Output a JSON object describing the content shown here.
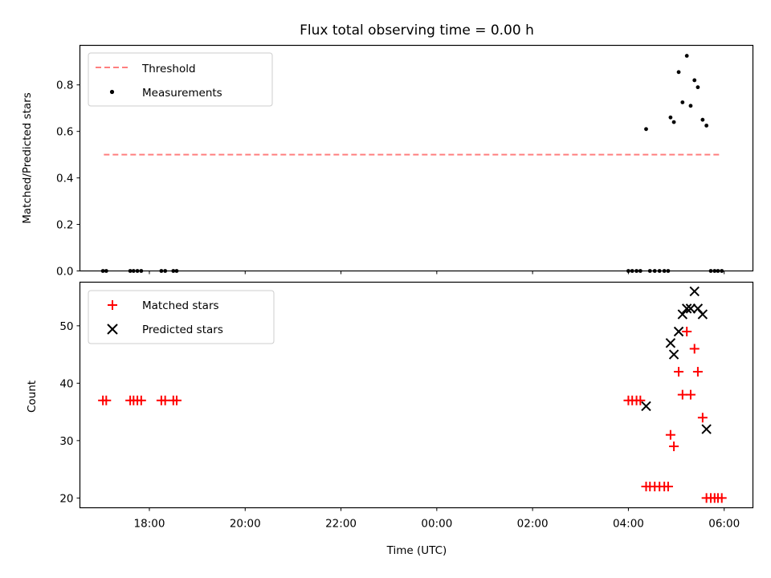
{
  "chart_data": [
    {
      "type": "scatter",
      "title": "Flux total observing time = 0.00 h",
      "xlabel": "",
      "ylabel": "Matched/Predicted stars",
      "ylim": [
        0,
        0.97
      ],
      "yticks": [
        0.0,
        0.2,
        0.4,
        0.6,
        0.8
      ],
      "ytick_labels": [
        "0.0",
        "0.2",
        "0.4",
        "0.6",
        "0.8"
      ],
      "x_unit": "hours since 00:00 UTC",
      "xlim": [
        -7.45,
        6.6
      ],
      "legend_position": "upper-left",
      "threshold": {
        "name": "Threshold",
        "color": "#ff7f7f",
        "style": "dashed",
        "y": 0.5,
        "x_range": [
          -6.95,
          5.93
        ]
      },
      "series": [
        {
          "name": "Measurements",
          "marker": "dot",
          "color": "#000000",
          "points": [
            [
              -6.97,
              0.0
            ],
            [
              -6.9,
              0.0
            ],
            [
              -6.4,
              0.0
            ],
            [
              -6.33,
              0.0
            ],
            [
              -6.25,
              0.0
            ],
            [
              -6.17,
              0.0
            ],
            [
              -5.75,
              0.0
            ],
            [
              -5.67,
              0.0
            ],
            [
              -5.5,
              0.0
            ],
            [
              -5.43,
              0.0
            ],
            [
              4.0,
              0.0
            ],
            [
              4.08,
              0.0
            ],
            [
              4.17,
              0.0
            ],
            [
              4.25,
              0.0
            ],
            [
              4.37,
              0.61
            ],
            [
              4.45,
              0.0
            ],
            [
              4.55,
              0.0
            ],
            [
              4.65,
              0.0
            ],
            [
              4.75,
              0.0
            ],
            [
              4.83,
              0.0
            ],
            [
              4.88,
              0.66
            ],
            [
              4.95,
              0.64
            ],
            [
              5.05,
              0.855
            ],
            [
              5.13,
              0.725
            ],
            [
              5.22,
              0.925
            ],
            [
              5.3,
              0.71
            ],
            [
              5.38,
              0.82
            ],
            [
              5.45,
              0.79
            ],
            [
              5.55,
              0.65
            ],
            [
              5.63,
              0.625
            ],
            [
              5.72,
              0.0
            ],
            [
              5.8,
              0.0
            ],
            [
              5.87,
              0.0
            ],
            [
              5.95,
              0.0
            ]
          ]
        }
      ]
    },
    {
      "type": "scatter",
      "title": "",
      "xlabel": "Time (UTC)",
      "ylabel": "Count",
      "ylim": [
        18.3,
        57.6
      ],
      "yticks": [
        20,
        30,
        40,
        50
      ],
      "ytick_labels": [
        "20",
        "30",
        "40",
        "50"
      ],
      "x_unit": "hours since 00:00 UTC",
      "xlim": [
        -7.45,
        6.6
      ],
      "xticks": [
        -6,
        -4,
        -2,
        0,
        2,
        4,
        6
      ],
      "xtick_labels": [
        "18:00",
        "20:00",
        "22:00",
        "00:00",
        "02:00",
        "04:00",
        "06:00"
      ],
      "legend_position": "upper-left",
      "series": [
        {
          "name": "Matched stars",
          "marker": "plus",
          "color": "#ff0000",
          "points": [
            [
              -6.97,
              37
            ],
            [
              -6.9,
              37
            ],
            [
              -6.4,
              37
            ],
            [
              -6.33,
              37
            ],
            [
              -6.25,
              37
            ],
            [
              -6.17,
              37
            ],
            [
              -5.75,
              37
            ],
            [
              -5.67,
              37
            ],
            [
              -5.5,
              37
            ],
            [
              -5.43,
              37
            ],
            [
              4.0,
              37
            ],
            [
              4.08,
              37
            ],
            [
              4.17,
              37
            ],
            [
              4.25,
              37
            ],
            [
              4.37,
              22
            ],
            [
              4.45,
              22
            ],
            [
              4.55,
              22
            ],
            [
              4.65,
              22
            ],
            [
              4.75,
              22
            ],
            [
              4.83,
              22
            ],
            [
              4.88,
              31
            ],
            [
              4.95,
              29
            ],
            [
              5.05,
              42
            ],
            [
              5.13,
              38
            ],
            [
              5.22,
              49
            ],
            [
              5.3,
              38
            ],
            [
              5.38,
              46
            ],
            [
              5.45,
              42
            ],
            [
              5.55,
              34
            ],
            [
              5.63,
              20
            ],
            [
              5.72,
              20
            ],
            [
              5.8,
              20
            ],
            [
              5.87,
              20
            ],
            [
              5.95,
              20
            ]
          ]
        },
        {
          "name": "Predicted stars",
          "marker": "x",
          "color": "#000000",
          "points": [
            [
              4.37,
              36
            ],
            [
              4.88,
              47
            ],
            [
              4.95,
              45
            ],
            [
              5.05,
              49
            ],
            [
              5.13,
              52
            ],
            [
              5.22,
              53
            ],
            [
              5.3,
              53
            ],
            [
              5.38,
              56
            ],
            [
              5.45,
              53
            ],
            [
              5.55,
              52
            ],
            [
              5.63,
              32
            ]
          ]
        }
      ]
    }
  ]
}
